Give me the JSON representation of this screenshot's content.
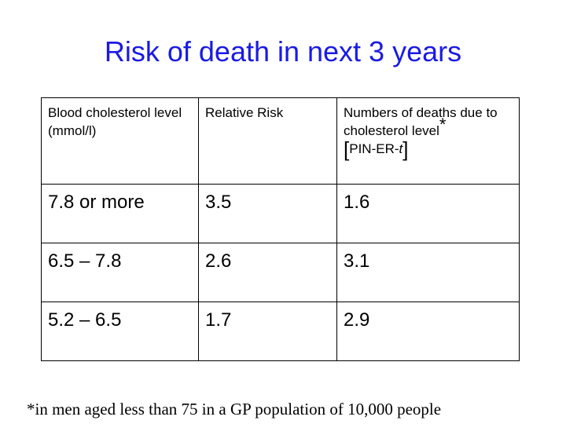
{
  "title": "Risk of death in next 3 years",
  "table": {
    "headers": {
      "col1": "Blood cholesterol level (mmol/l)",
      "col2": "Relative Risk",
      "col3_text": "Numbers of deaths due to cholesterol level",
      "col3_marker": "*",
      "col3_bracket_open": "[",
      "col3_ref_prefix": "PIN-ER-",
      "col3_ref_italic": "t",
      "col3_bracket_close": "]"
    },
    "rows": [
      {
        "level": "7.8 or more",
        "relative_risk": "3.5",
        "deaths": "1.6"
      },
      {
        "level": "6.5 – 7.8",
        "relative_risk": "2.6",
        "deaths": "3.1"
      },
      {
        "level": "5.2 – 6.5",
        "relative_risk": "1.7",
        "deaths": "2.9"
      }
    ]
  },
  "footnote": "*in men aged less than 75 in a GP population of 10,000 people",
  "colors": {
    "title": "#1a1ae6",
    "text": "#000000",
    "background": "#ffffff"
  }
}
